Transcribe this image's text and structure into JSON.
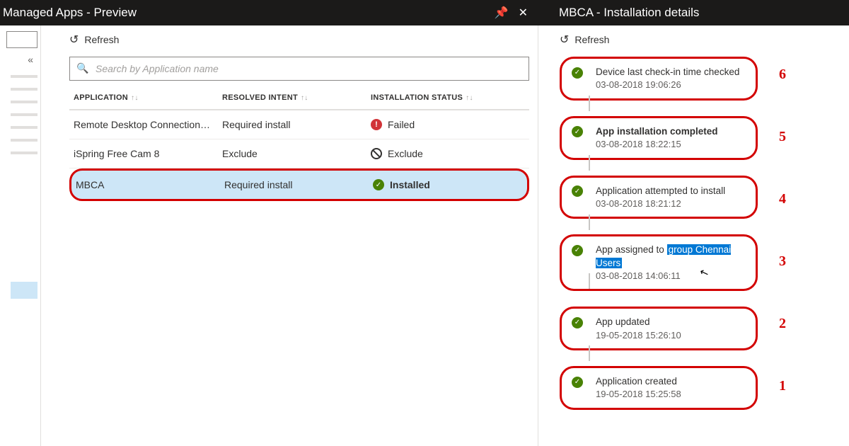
{
  "header": {
    "left_title": "Managed Apps - Preview",
    "right_title": "MBCA - Installation details"
  },
  "refresh_label": "Refresh",
  "search": {
    "placeholder": "Search by Application name"
  },
  "columns": {
    "app": "APPLICATION",
    "intent": "RESOLVED INTENT",
    "status": "INSTALLATION STATUS"
  },
  "rows": [
    {
      "app": "Remote Desktop Connection…",
      "intent": "Required install",
      "status": "Failed",
      "icon": "fail",
      "selected": false
    },
    {
      "app": "iSpring Free Cam 8",
      "intent": "Exclude",
      "status": "Exclude",
      "icon": "exclude",
      "selected": false
    },
    {
      "app": "MBCA",
      "intent": "Required install",
      "status": "Installed",
      "icon": "ok",
      "selected": true
    }
  ],
  "timeline": [
    {
      "title": "Device last check-in time checked",
      "ts": "03-08-2018 19:06:26",
      "bold": false,
      "annot": "6"
    },
    {
      "title": "App installation completed",
      "ts": "03-08-2018 18:22:15",
      "bold": true,
      "annot": "5"
    },
    {
      "title": "Application attempted to install",
      "ts": "03-08-2018 18:21:12",
      "bold": false,
      "annot": "4"
    },
    {
      "title_pre": "App assigned to ",
      "title_hl": "group Chennai Users",
      "ts": "03-08-2018 14:06:11",
      "bold": false,
      "annot": "3",
      "cursor": true
    },
    {
      "title": "App updated",
      "ts": "19-05-2018 15:26:10",
      "bold": false,
      "annot": "2"
    },
    {
      "title": "Application created",
      "ts": "19-05-2018 15:25:58",
      "bold": false,
      "annot": "1"
    }
  ],
  "colors": {
    "annotation": "#d30000",
    "selected_row": "#cde6f7",
    "ok": "#498205",
    "fail": "#d13438",
    "highlight": "#0078d4"
  }
}
